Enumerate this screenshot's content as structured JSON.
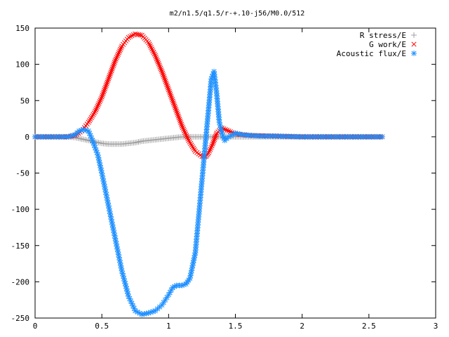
{
  "chart_data": {
    "type": "scatter",
    "title": "m2/n1.5/q1.5/r-+.10-j56/M0.0/512",
    "xlabel": "",
    "ylabel": "",
    "xlim": [
      0,
      3
    ],
    "ylim": [
      -250,
      150
    ],
    "grid": false,
    "legend_position": "top-right",
    "x_ticks": [
      "0",
      "0.5",
      "1",
      "1.5",
      "2",
      "2.5",
      "3"
    ],
    "y_ticks": [
      "150",
      "100",
      "50",
      "0",
      "-50",
      "-100",
      "-150",
      "-200",
      "-250"
    ],
    "series": [
      {
        "name": "R stress/E",
        "marker": "plus",
        "color": "#a0a0a0",
        "x": [
          0,
          0.1,
          0.2,
          0.25,
          0.3,
          0.35,
          0.4,
          0.45,
          0.5,
          0.55,
          0.6,
          0.65,
          0.7,
          0.75,
          0.8,
          0.85,
          0.9,
          0.95,
          1.0,
          1.05,
          1.1,
          1.15,
          1.2,
          1.25,
          1.3,
          1.35,
          1.4,
          1.5,
          1.6,
          1.8,
          2.0,
          2.2,
          2.4,
          2.6
        ],
        "y": [
          0,
          0,
          0,
          0,
          -1,
          -3,
          -5,
          -7,
          -9,
          -10,
          -10,
          -10,
          -9,
          -8,
          -6,
          -5,
          -4,
          -3,
          -2,
          -1,
          0,
          0,
          0,
          0,
          0,
          0,
          0,
          0,
          0,
          0,
          0,
          0,
          0,
          0
        ]
      },
      {
        "name": "G work/E",
        "marker": "cross",
        "color": "#ff0000",
        "x": [
          0,
          0.1,
          0.2,
          0.25,
          0.3,
          0.35,
          0.4,
          0.45,
          0.5,
          0.55,
          0.6,
          0.65,
          0.7,
          0.75,
          0.8,
          0.85,
          0.9,
          0.95,
          1.0,
          1.05,
          1.1,
          1.15,
          1.2,
          1.25,
          1.28,
          1.3,
          1.33,
          1.36,
          1.4,
          1.45,
          1.5,
          1.6,
          1.8,
          2.0,
          2.2,
          2.4,
          2.6
        ],
        "y": [
          0,
          0,
          0,
          0,
          2,
          8,
          20,
          35,
          55,
          80,
          105,
          125,
          137,
          142,
          140,
          130,
          112,
          90,
          65,
          40,
          15,
          -5,
          -20,
          -27,
          -27,
          -22,
          -10,
          5,
          12,
          8,
          4,
          2,
          1,
          0,
          0,
          0,
          0
        ]
      },
      {
        "name": "Acoustic flux/E",
        "marker": "star",
        "color": "#1e90ff",
        "x": [
          0,
          0.1,
          0.2,
          0.25,
          0.3,
          0.33,
          0.36,
          0.4,
          0.43,
          0.47,
          0.5,
          0.55,
          0.6,
          0.65,
          0.7,
          0.75,
          0.8,
          0.85,
          0.9,
          0.95,
          1.0,
          1.03,
          1.06,
          1.1,
          1.13,
          1.16,
          1.2,
          1.24,
          1.27,
          1.3,
          1.32,
          1.34,
          1.36,
          1.38,
          1.4,
          1.42,
          1.45,
          1.5,
          1.55,
          1.6,
          1.7,
          1.8,
          2.0,
          2.2,
          2.4,
          2.6
        ],
        "y": [
          0,
          0,
          0,
          0,
          3,
          8,
          10,
          8,
          -5,
          -25,
          -50,
          -95,
          -140,
          -185,
          -220,
          -240,
          -245,
          -243,
          -240,
          -232,
          -218,
          -208,
          -205,
          -205,
          -203,
          -195,
          -160,
          -80,
          -20,
          40,
          80,
          90,
          60,
          20,
          5,
          -5,
          0,
          5,
          3,
          2,
          1,
          1,
          0,
          0,
          0,
          0
        ]
      }
    ]
  }
}
